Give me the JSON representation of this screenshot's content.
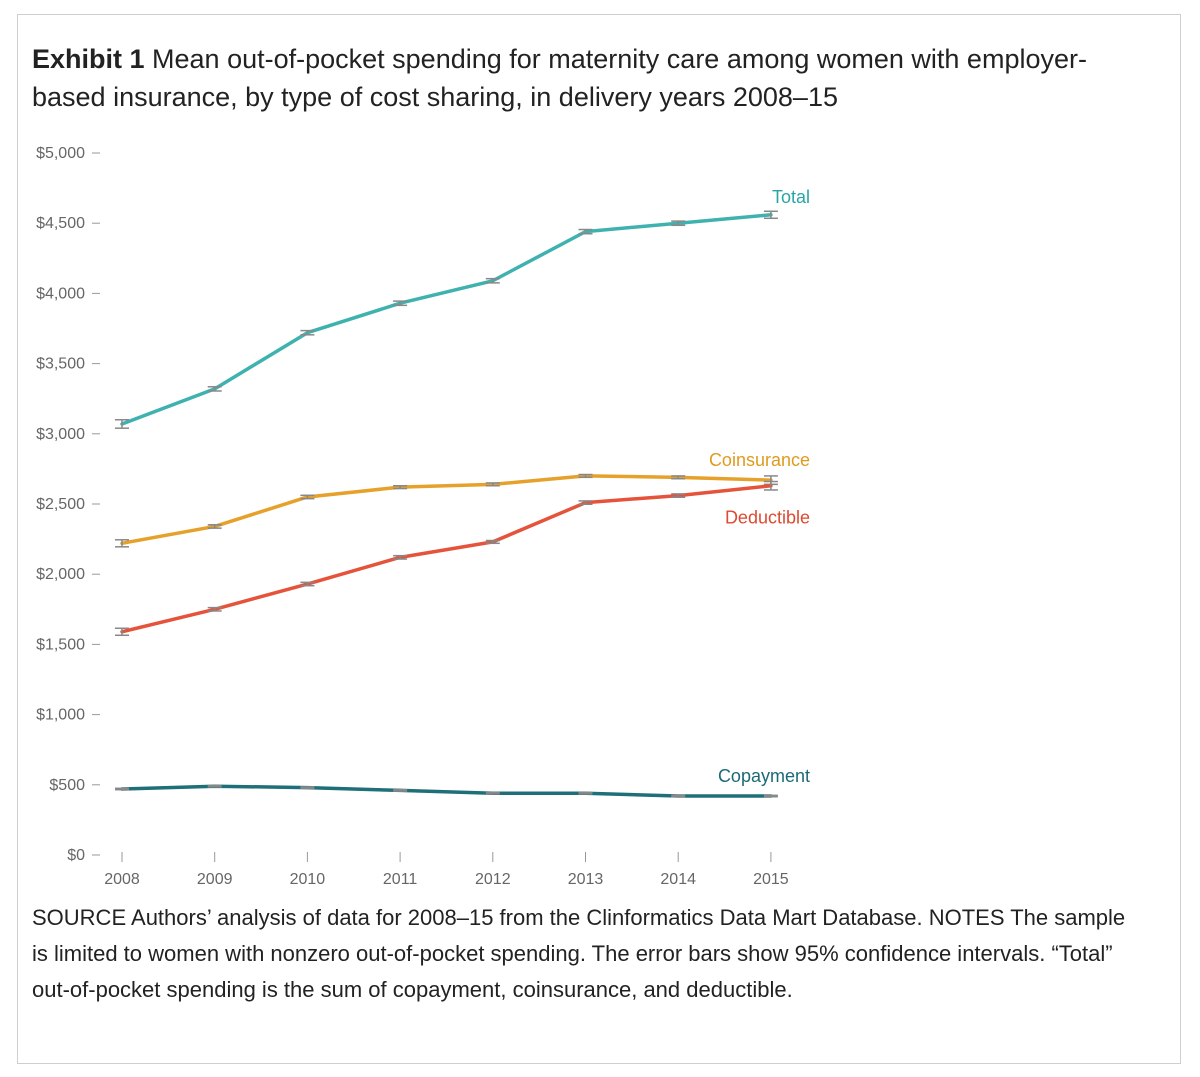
{
  "exhibit": {
    "lead": "Exhibit 1",
    "title_text": " Mean out-of-pocket spending for maternity care among women with employer-based insurance, by type of cost sharing, in delivery years 2008–15"
  },
  "chart_data": {
    "type": "line",
    "title": "Mean out-of-pocket spending for maternity care among women with employer-based insurance, by type of cost sharing, in delivery years 2008–15",
    "xlabel": "",
    "ylabel": "",
    "categories": [
      "2008",
      "2009",
      "2010",
      "2011",
      "2012",
      "2013",
      "2014",
      "2015"
    ],
    "ylim": [
      0,
      5000
    ],
    "y_ticks": [
      0,
      500,
      1000,
      1500,
      2000,
      2500,
      3000,
      3500,
      4000,
      4500,
      5000
    ],
    "y_tick_labels": [
      "$0",
      "$500",
      "$1,000",
      "$1,500",
      "$2,000",
      "$2,500",
      "$3,000",
      "$3,500",
      "$4,000",
      "$4,500",
      "$5,000"
    ],
    "grid": false,
    "error_bars": "95% confidence intervals",
    "series": [
      {
        "name": "Total",
        "color": "#3fb2b0",
        "label_color": "#2aa5a5",
        "values": [
          3070,
          3320,
          3720,
          3930,
          4090,
          4440,
          4500,
          4560
        ],
        "ci": [
          30,
          15,
          15,
          15,
          15,
          15,
          15,
          25
        ]
      },
      {
        "name": "Coinsurance",
        "color": "#e6a12a",
        "label_color": "#e09b1d",
        "values": [
          2220,
          2340,
          2550,
          2620,
          2640,
          2700,
          2690,
          2670
        ],
        "ci": [
          25,
          12,
          12,
          10,
          10,
          10,
          10,
          30
        ]
      },
      {
        "name": "Deductible",
        "color": "#e5533b",
        "label_color": "#dd4a31",
        "values": [
          1590,
          1750,
          1930,
          2120,
          2230,
          2510,
          2560,
          2630
        ],
        "ci": [
          25,
          12,
          12,
          12,
          10,
          12,
          12,
          30
        ]
      },
      {
        "name": "Copayment",
        "color": "#1f6f78",
        "label_color": "#1a6a76",
        "values": [
          470,
          490,
          480,
          460,
          440,
          440,
          420,
          420
        ],
        "ci": [
          5,
          5,
          5,
          5,
          5,
          5,
          5,
          5
        ]
      }
    ]
  },
  "source_note": "SOURCE Authors’ analysis of data for 2008–15 from the Clinformatics Data Mart Database. NOTES The sample is limited to women with nonzero out-of-pocket spending. The error bars show 95% confidence intervals. “Total” out-of-pocket spending is the sum of copayment, coinsurance, and deductible."
}
